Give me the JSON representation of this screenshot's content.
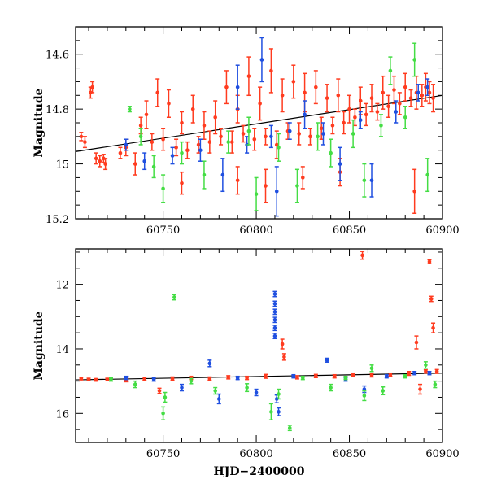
{
  "colors": {
    "blue": "#1f4fe0",
    "green": "#44dd44",
    "red": "#ff3b1f",
    "model_line": "#000000"
  },
  "chart_data": [
    {
      "type": "scatter",
      "title": "",
      "xlabel": "",
      "ylabel": "Magnitude",
      "xlim": [
        60703,
        60900
      ],
      "ylim": [
        15.2,
        14.5
      ],
      "y_inverted": true,
      "x_ticks": [
        60750,
        60800,
        60850,
        60900
      ],
      "x_tick_labels": [
        "60750",
        "60800",
        "60850",
        "60900"
      ],
      "y_ticks": [
        14.6,
        14.8,
        15.0,
        15.2
      ],
      "y_tick_labels": [
        "14.6",
        "14.8",
        "15",
        "15.2"
      ],
      "grid": false,
      "legend": "none",
      "baseline_model": {
        "x": [
          60703,
          60900
        ],
        "y": [
          14.955,
          14.75
        ]
      },
      "series": [
        {
          "color_key": "red",
          "points": [
            [
              60706,
              14.9,
              0.015
            ],
            [
              60708,
              14.92,
              0.02
            ],
            [
              60711,
              14.74,
              0.02
            ],
            [
              60712,
              14.72,
              0.02
            ],
            [
              60714,
              14.98,
              0.02
            ],
            [
              60716,
              14.99,
              0.02
            ],
            [
              60718,
              14.98,
              0.015
            ],
            [
              60719,
              15.0,
              0.02
            ],
            [
              60727,
              14.96,
              0.02
            ],
            [
              60730,
              14.94,
              0.03
            ],
            [
              60735,
              15.0,
              0.04
            ],
            [
              60738,
              14.86,
              0.03
            ],
            [
              60741,
              14.82,
              0.05
            ],
            [
              60744,
              14.92,
              0.03
            ],
            [
              60747,
              14.74,
              0.05
            ],
            [
              60750,
              14.91,
              0.04
            ],
            [
              60753,
              14.78,
              0.05
            ],
            [
              60757,
              14.94,
              0.03
            ],
            [
              60760,
              14.85,
              0.04
            ],
            [
              60763,
              14.95,
              0.03
            ],
            [
              60766,
              14.8,
              0.05
            ],
            [
              60769,
              14.93,
              0.03
            ],
            [
              60772,
              14.86,
              0.05
            ],
            [
              60775,
              14.92,
              0.04
            ],
            [
              60778,
              14.83,
              0.06
            ],
            [
              60781,
              14.9,
              0.03
            ],
            [
              60784,
              14.72,
              0.06
            ],
            [
              60787,
              14.92,
              0.04
            ],
            [
              60790,
              14.8,
              0.05
            ],
            [
              60793,
              14.89,
              0.03
            ],
            [
              60796,
              14.68,
              0.07
            ],
            [
              60799,
              14.91,
              0.04
            ],
            [
              60802,
              14.78,
              0.06
            ],
            [
              60805,
              14.9,
              0.03
            ],
            [
              60808,
              14.66,
              0.08
            ],
            [
              60811,
              14.93,
              0.05
            ],
            [
              60814,
              14.75,
              0.06
            ],
            [
              60817,
              14.88,
              0.03
            ],
            [
              60820,
              14.7,
              0.06
            ],
            [
              60823,
              14.89,
              0.04
            ],
            [
              60826,
              14.74,
              0.07
            ],
            [
              60829,
              14.9,
              0.03
            ],
            [
              60832,
              14.72,
              0.06
            ],
            [
              60835,
              14.87,
              0.04
            ],
            [
              60838,
              14.76,
              0.05
            ],
            [
              60841,
              14.86,
              0.03
            ],
            [
              60844,
              14.75,
              0.06
            ],
            [
              60847,
              14.85,
              0.04
            ],
            [
              60850,
              14.8,
              0.05
            ],
            [
              60853,
              14.83,
              0.03
            ],
            [
              60856,
              14.77,
              0.05
            ],
            [
              60859,
              14.82,
              0.04
            ],
            [
              60862,
              14.76,
              0.05
            ],
            [
              60865,
              14.81,
              0.03
            ],
            [
              60868,
              14.74,
              0.06
            ],
            [
              60871,
              14.79,
              0.04
            ],
            [
              60874,
              14.73,
              0.05
            ],
            [
              60877,
              14.78,
              0.04
            ],
            [
              60880,
              14.72,
              0.05
            ],
            [
              60883,
              14.76,
              0.03
            ],
            [
              60886,
              14.74,
              0.06
            ],
            [
              60889,
              14.75,
              0.04
            ],
            [
              60891,
              14.72,
              0.05
            ],
            [
              60893,
              14.74,
              0.04
            ],
            [
              60895,
              14.76,
              0.05
            ],
            [
              60760,
              15.07,
              0.04
            ],
            [
              60790,
              15.06,
              0.05
            ],
            [
              60805,
              15.08,
              0.06
            ],
            [
              60825,
              15.05,
              0.04
            ],
            [
              60845,
              15.03,
              0.05
            ],
            [
              60885,
              15.1,
              0.08
            ]
          ]
        },
        {
          "color_key": "blue",
          "points": [
            [
              60730,
              14.93,
              0.02
            ],
            [
              60740,
              14.99,
              0.03
            ],
            [
              60755,
              14.97,
              0.03
            ],
            [
              60770,
              14.95,
              0.04
            ],
            [
              60782,
              15.04,
              0.06
            ],
            [
              60790,
              14.72,
              0.08
            ],
            [
              60795,
              14.93,
              0.03
            ],
            [
              60803,
              14.62,
              0.08
            ],
            [
              60808,
              14.9,
              0.04
            ],
            [
              60811,
              15.1,
              0.09
            ],
            [
              60818,
              14.88,
              0.03
            ],
            [
              60826,
              14.82,
              0.05
            ],
            [
              60836,
              14.89,
              0.04
            ],
            [
              60845,
              15.0,
              0.06
            ],
            [
              60856,
              14.84,
              0.03
            ],
            [
              60862,
              15.06,
              0.06
            ],
            [
              60875,
              14.81,
              0.04
            ],
            [
              60887,
              14.74,
              0.03
            ],
            [
              60892,
              14.72,
              0.03
            ]
          ]
        },
        {
          "color_key": "green",
          "points": [
            [
              60732,
              14.8,
              0.01
            ],
            [
              60738,
              14.9,
              0.03
            ],
            [
              60745,
              15.01,
              0.04
            ],
            [
              60750,
              15.09,
              0.05
            ],
            [
              60760,
              14.96,
              0.04
            ],
            [
              60772,
              15.04,
              0.05
            ],
            [
              60785,
              14.92,
              0.04
            ],
            [
              60796,
              14.88,
              0.05
            ],
            [
              60800,
              15.11,
              0.06
            ],
            [
              60812,
              14.94,
              0.05
            ],
            [
              60822,
              15.08,
              0.06
            ],
            [
              60833,
              14.9,
              0.05
            ],
            [
              60840,
              14.96,
              0.05
            ],
            [
              60852,
              14.89,
              0.05
            ],
            [
              60858,
              15.06,
              0.06
            ],
            [
              60867,
              14.86,
              0.04
            ],
            [
              60872,
              14.66,
              0.05
            ],
            [
              60880,
              14.83,
              0.04
            ],
            [
              60885,
              14.62,
              0.06
            ],
            [
              60892,
              15.04,
              0.06
            ]
          ]
        }
      ]
    },
    {
      "type": "scatter",
      "title": "",
      "xlabel": "HJD−2400000",
      "ylabel": "Magnitude",
      "xlim": [
        60703,
        60900
      ],
      "ylim": [
        16.9,
        10.9
      ],
      "y_inverted": true,
      "x_ticks": [
        60750,
        60800,
        60850,
        60900
      ],
      "x_tick_labels": [
        "60750",
        "60800",
        "60850",
        "60900"
      ],
      "y_ticks": [
        12,
        14,
        16
      ],
      "y_tick_labels": [
        "12",
        "14",
        "16"
      ],
      "grid": false,
      "legend": "none",
      "baseline_model": {
        "x": [
          60703,
          60900
        ],
        "y": [
          14.96,
          14.75
        ]
      },
      "series": [
        {
          "color_key": "red",
          "points": [
            [
              60706,
              14.92,
              0.04
            ],
            [
              60710,
              14.95,
              0.04
            ],
            [
              60714,
              14.96,
              0.04
            ],
            [
              60720,
              14.95,
              0.04
            ],
            [
              60730,
              14.97,
              0.05
            ],
            [
              60740,
              14.93,
              0.05
            ],
            [
              60748,
              15.3,
              0.08
            ],
            [
              60755,
              14.92,
              0.05
            ],
            [
              60765,
              14.9,
              0.05
            ],
            [
              60775,
              14.92,
              0.05
            ],
            [
              60785,
              14.88,
              0.05
            ],
            [
              60795,
              14.9,
              0.05
            ],
            [
              60805,
              14.85,
              0.06
            ],
            [
              60814,
              13.85,
              0.15
            ],
            [
              60815,
              14.25,
              0.1
            ],
            [
              60822,
              14.88,
              0.05
            ],
            [
              60832,
              14.84,
              0.05
            ],
            [
              60842,
              14.85,
              0.05
            ],
            [
              60852,
              14.8,
              0.05
            ],
            [
              60857,
              11.1,
              0.12
            ],
            [
              60862,
              14.82,
              0.05
            ],
            [
              60872,
              14.8,
              0.05
            ],
            [
              60882,
              14.76,
              0.06
            ],
            [
              60886,
              13.8,
              0.2
            ],
            [
              60888,
              15.25,
              0.15
            ],
            [
              60891,
              14.7,
              0.05
            ],
            [
              60893,
              11.3,
              0.06
            ],
            [
              60894,
              12.45,
              0.08
            ],
            [
              60895,
              13.35,
              0.15
            ],
            [
              60897,
              14.7,
              0.06
            ]
          ]
        },
        {
          "color_key": "blue",
          "points": [
            [
              60730,
              14.9,
              0.05
            ],
            [
              60745,
              14.95,
              0.05
            ],
            [
              60760,
              15.2,
              0.1
            ],
            [
              60775,
              14.45,
              0.1
            ],
            [
              60780,
              15.55,
              0.15
            ],
            [
              60790,
              14.9,
              0.05
            ],
            [
              60800,
              15.35,
              0.1
            ],
            [
              60810,
              12.3,
              0.08
            ],
            [
              60810,
              12.6,
              0.08
            ],
            [
              60810,
              12.85,
              0.08
            ],
            [
              60810,
              13.1,
              0.08
            ],
            [
              60810,
              13.35,
              0.08
            ],
            [
              60810,
              13.6,
              0.08
            ],
            [
              60811,
              15.55,
              0.12
            ],
            [
              60812,
              15.95,
              0.12
            ],
            [
              60820,
              14.85,
              0.05
            ],
            [
              60838,
              14.35,
              0.06
            ],
            [
              60848,
              14.95,
              0.05
            ],
            [
              60858,
              15.25,
              0.1
            ],
            [
              60870,
              14.85,
              0.05
            ],
            [
              60885,
              14.75,
              0.05
            ],
            [
              60893,
              14.75,
              0.05
            ]
          ]
        },
        {
          "color_key": "green",
          "points": [
            [
              60722,
              14.95,
              0.05
            ],
            [
              60735,
              15.1,
              0.1
            ],
            [
              60750,
              16.0,
              0.2
            ],
            [
              60751,
              15.5,
              0.15
            ],
            [
              60756,
              12.4,
              0.08
            ],
            [
              60765,
              15.0,
              0.08
            ],
            [
              60778,
              15.3,
              0.1
            ],
            [
              60795,
              15.2,
              0.12
            ],
            [
              60808,
              15.95,
              0.25
            ],
            [
              60812,
              15.4,
              0.15
            ],
            [
              60818,
              16.45,
              0.08
            ],
            [
              60825,
              14.9,
              0.05
            ],
            [
              60840,
              15.2,
              0.1
            ],
            [
              60848,
              14.9,
              0.05
            ],
            [
              60858,
              15.45,
              0.15
            ],
            [
              60862,
              14.6,
              0.1
            ],
            [
              60868,
              15.3,
              0.12
            ],
            [
              60880,
              14.85,
              0.05
            ],
            [
              60891,
              14.5,
              0.1
            ],
            [
              60896,
              15.1,
              0.1
            ]
          ]
        }
      ]
    }
  ]
}
